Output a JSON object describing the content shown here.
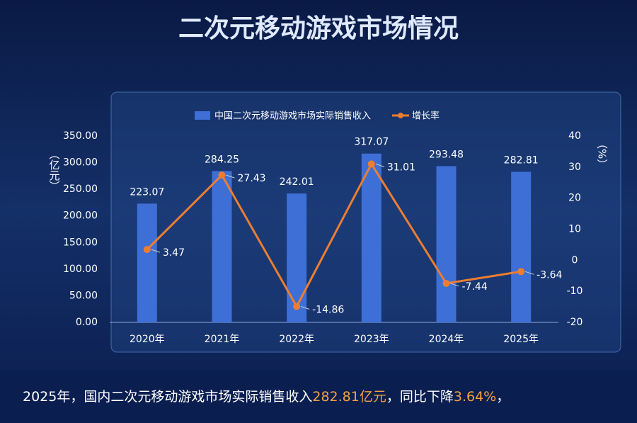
{
  "chart_data": {
    "type": "bar-line",
    "title": "二次元移动游戏市场情况",
    "categories": [
      "2020年",
      "2021年",
      "2022年",
      "2023年",
      "2024年",
      "2025年"
    ],
    "series": [
      {
        "name": "中国二次元移动游戏市场实际销售收入",
        "type": "bar",
        "color": "#3d6fd6",
        "values": [
          223.07,
          284.25,
          242.01,
          317.07,
          293.48,
          282.81
        ]
      },
      {
        "name": "增长率",
        "type": "line",
        "axis": "y2",
        "color": "#ed7d31",
        "values": [
          3.47,
          27.43,
          -14.86,
          31.01,
          -7.44,
          -3.64
        ]
      }
    ],
    "y_label": "（亿元）",
    "y2_label": "（%）",
    "ylim": [
      0,
      350
    ],
    "yticks": [
      {
        "value": 0,
        "label": "0.00"
      },
      {
        "value": 50,
        "label": "50.00"
      },
      {
        "value": 100,
        "label": "100.00"
      },
      {
        "value": 150,
        "label": "150.00"
      },
      {
        "value": 200,
        "label": "200.00"
      },
      {
        "value": 250,
        "label": "250.00"
      },
      {
        "value": 300,
        "label": "300.00"
      },
      {
        "value": 350,
        "label": "350.00"
      }
    ],
    "y2lim": [
      -20,
      40
    ],
    "y2ticks": [
      -20,
      -10,
      0,
      10,
      20,
      30,
      40
    ],
    "legend": "top"
  },
  "footer": {
    "parts": [
      "2025年，国内二次元移动游戏市场实际销售收入",
      "282.81亿元",
      "，同比下降",
      "3.64%",
      "，"
    ]
  }
}
